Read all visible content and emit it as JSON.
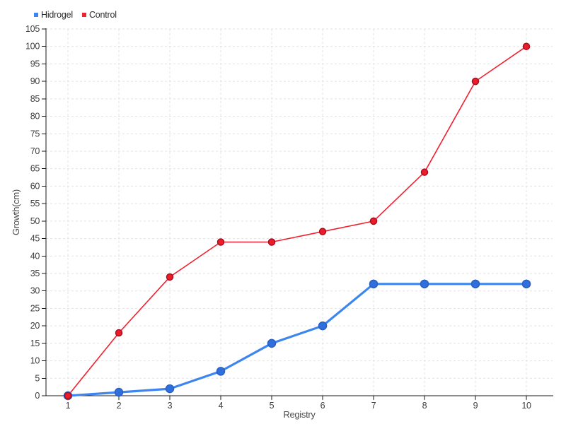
{
  "chart_data": {
    "type": "line",
    "title": "",
    "xlabel": "Registry",
    "ylabel": "Growth(cm)",
    "x": [
      1,
      2,
      3,
      4,
      5,
      6,
      7,
      8,
      9,
      10
    ],
    "series": [
      {
        "name": "Hidrogel",
        "values": [
          0,
          1,
          2,
          7,
          15,
          20,
          32,
          32,
          32,
          32
        ],
        "color": "#3d86f0",
        "marker_fill": "#3070dd",
        "marker_stroke": "#2b5fc0",
        "line_width": 3.2,
        "marker_radius": 5.5
      },
      {
        "name": "Control",
        "values": [
          0,
          18,
          34,
          44,
          44,
          47,
          50,
          64,
          90,
          100
        ],
        "color": "#f02130",
        "marker_fill": "#ec1c2c",
        "marker_stroke": "#a90e1c",
        "line_width": 1.6,
        "marker_radius": 4.5
      }
    ],
    "ylim": [
      0,
      105
    ],
    "ytick_step": 5,
    "xlim": [
      1,
      10
    ],
    "grid": true,
    "grid_style": "dashed",
    "legend_position": "top-left",
    "colors": {
      "background": "#ffffff",
      "grid": "#e2e2e2",
      "axis": "#191919",
      "tick_label": "#3d3d3d",
      "axis_title": "#4d4d4d"
    }
  }
}
